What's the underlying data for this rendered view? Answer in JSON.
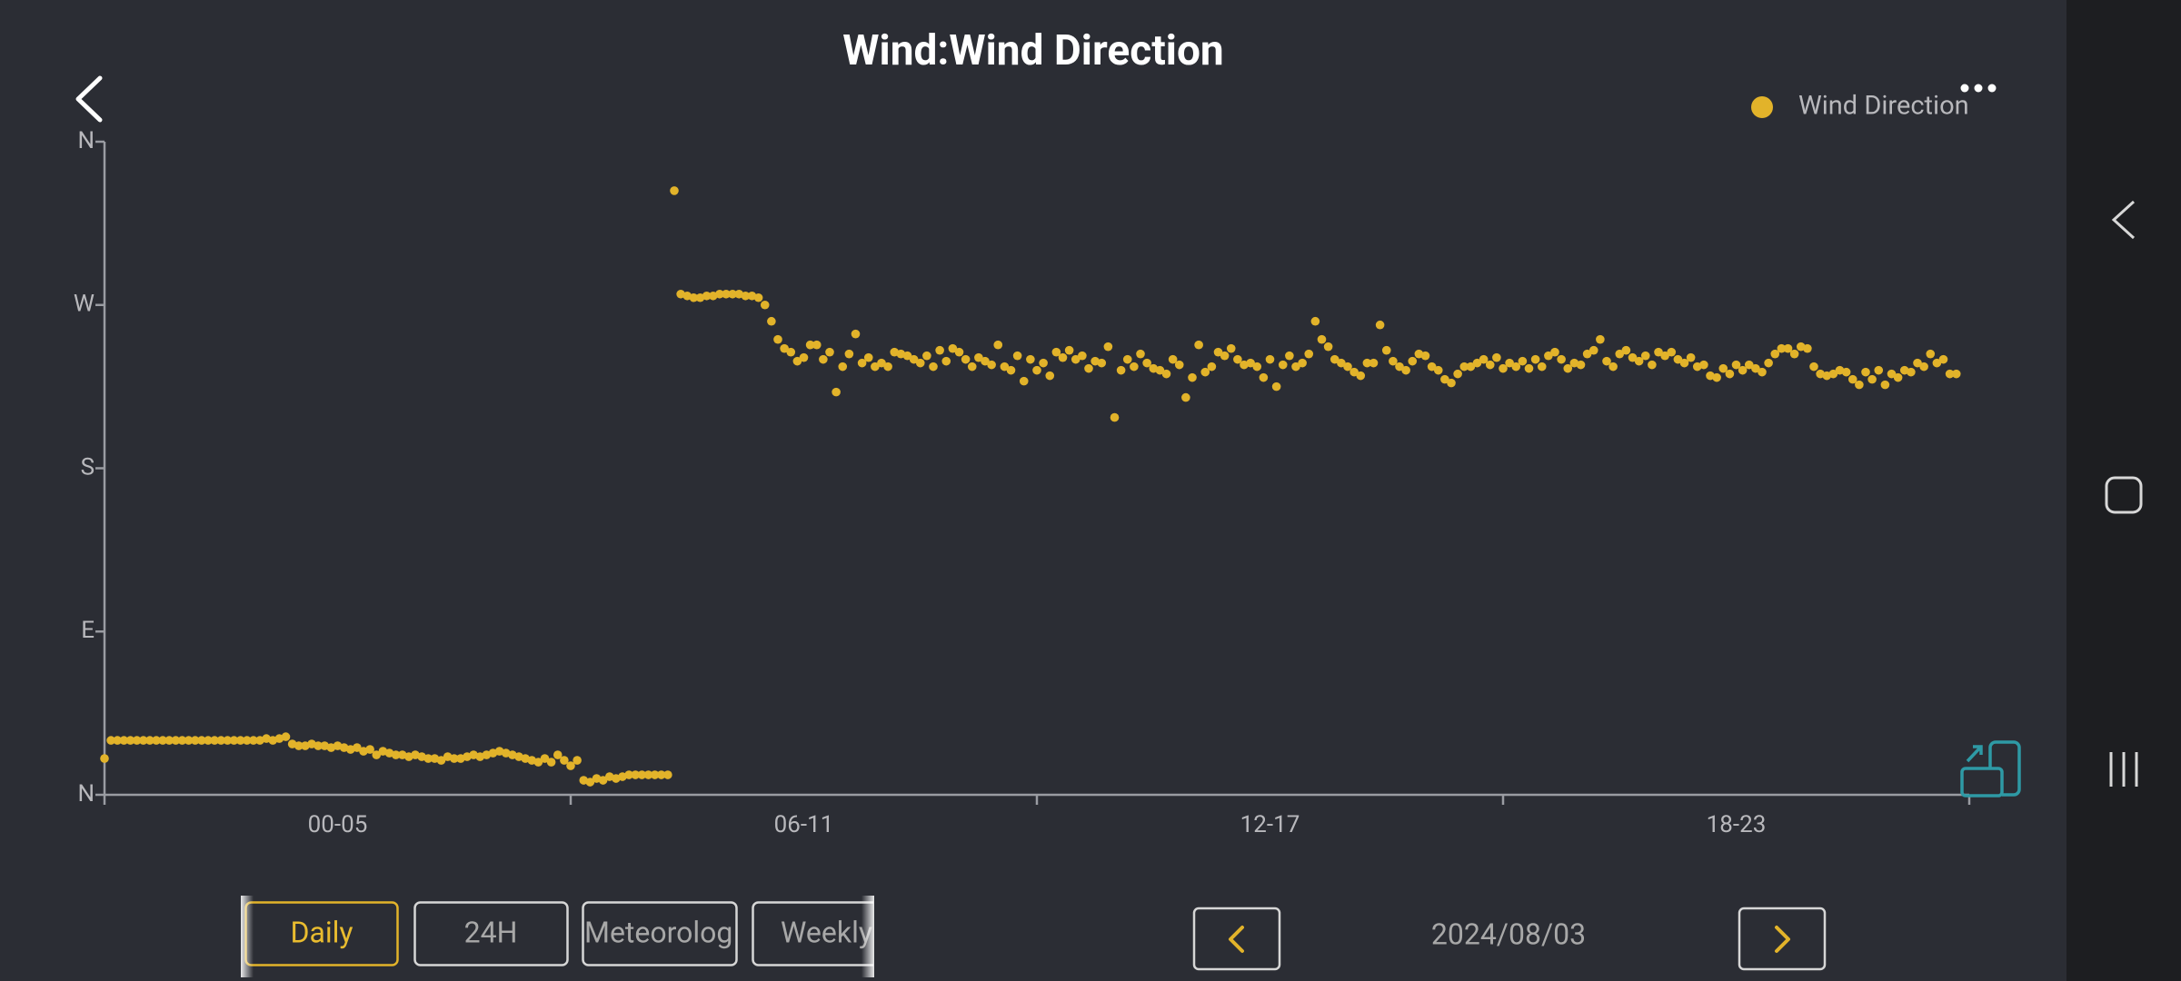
{
  "chart_data": {
    "type": "scatter",
    "title": "Wind:Wind Direction",
    "legend": "top-right",
    "x": [
      0,
      5,
      10,
      15,
      20,
      25,
      30,
      35,
      40,
      45,
      50,
      55,
      60,
      65,
      70,
      75,
      80,
      85,
      90,
      95,
      100,
      105,
      110,
      115,
      120,
      125,
      130,
      135,
      140,
      145,
      150,
      155,
      160,
      165,
      170,
      175,
      180,
      185,
      190,
      195,
      200,
      205,
      210,
      215,
      220,
      225,
      230,
      235,
      240,
      245,
      250,
      255,
      260,
      265,
      270,
      275,
      280,
      285,
      290,
      295,
      300,
      305,
      310,
      315,
      320,
      325,
      330,
      335,
      340,
      345,
      350,
      355,
      360,
      365,
      370,
      375,
      380,
      385,
      390,
      395,
      400,
      405,
      410,
      415,
      420,
      425,
      430,
      435,
      440,
      445,
      450,
      455,
      460,
      465,
      470,
      475,
      480,
      485,
      490,
      495,
      500,
      505,
      510,
      515,
      520,
      525,
      530,
      535,
      540,
      545,
      550,
      555,
      560,
      565,
      570,
      575,
      580,
      585,
      590,
      595,
      600,
      605,
      610,
      615,
      620,
      625,
      630,
      635,
      640,
      645,
      650,
      655,
      660,
      665,
      670,
      675,
      680,
      685,
      690,
      695,
      700,
      705,
      710,
      715,
      720,
      725,
      730,
      735,
      740,
      745,
      750,
      755,
      760,
      765,
      770,
      775,
      780,
      785,
      790,
      795,
      800,
      805,
      810,
      815,
      820,
      825,
      830,
      835,
      840,
      845,
      850,
      855,
      860,
      865,
      870,
      875,
      880,
      885,
      890,
      895,
      900,
      905,
      910,
      915,
      920,
      925,
      930,
      935,
      940,
      945,
      950,
      955,
      960,
      965,
      970,
      975,
      980,
      985,
      990,
      995,
      1000,
      1005,
      1010,
      1015,
      1020,
      1025,
      1030,
      1035,
      1040,
      1045,
      1050,
      1055,
      1060,
      1065,
      1070,
      1075,
      1080,
      1085,
      1090,
      1095,
      1100,
      1105,
      1110,
      1115,
      1120,
      1125,
      1130,
      1135,
      1140,
      1145,
      1150,
      1155,
      1160,
      1165,
      1170,
      1175,
      1180,
      1185,
      1190,
      1195,
      1200,
      1205,
      1210,
      1215,
      1220,
      1225,
      1230,
      1235,
      1240,
      1245,
      1250,
      1255,
      1260,
      1265,
      1270,
      1275,
      1280,
      1285,
      1290,
      1295,
      1300,
      1305,
      1310,
      1315,
      1320,
      1325,
      1330,
      1335,
      1340,
      1345,
      1350,
      1355,
      1360,
      1365,
      1370,
      1375,
      1380,
      1385,
      1390,
      1395,
      1400,
      1405,
      1410,
      1415,
      1420,
      1425,
      1430
    ],
    "series": [
      {
        "name": "Wind Direction",
        "color": "#e2b32a",
        "values": [
          20,
          30,
          30,
          30,
          30,
          30,
          30,
          30,
          30,
          30,
          30,
          30,
          30,
          30,
          30,
          30,
          30,
          30,
          30,
          30,
          30,
          30,
          30,
          30,
          30,
          31,
          30,
          31,
          32,
          28,
          27,
          27,
          28,
          27,
          27,
          26,
          27,
          26,
          25,
          26,
          24,
          25,
          22,
          24,
          23,
          22,
          22,
          21,
          22,
          21,
          20,
          20,
          19,
          21,
          20,
          20,
          21,
          22,
          21,
          22,
          23,
          24,
          23,
          22,
          21,
          20,
          19,
          18,
          20,
          18,
          22,
          19,
          16,
          19,
          8,
          7,
          9,
          8,
          10,
          9,
          10,
          11,
          11,
          11,
          11,
          11,
          11,
          11,
          333,
          276,
          275,
          274,
          274,
          275,
          275,
          276,
          276,
          276,
          276,
          275,
          275,
          274,
          270,
          261,
          251,
          246,
          244,
          239,
          241,
          248,
          248,
          240,
          244,
          222,
          236,
          243,
          254,
          238,
          241,
          236,
          238,
          236,
          244,
          243,
          242,
          240,
          238,
          242,
          236,
          245,
          239,
          246,
          244,
          240,
          236,
          241,
          239,
          237,
          248,
          236,
          234,
          242,
          228,
          240,
          234,
          238,
          231,
          244,
          241,
          245,
          240,
          242,
          235,
          239,
          238,
          247,
          208,
          234,
          240,
          236,
          243,
          238,
          235,
          234,
          232,
          240,
          237,
          219,
          230,
          248,
          233,
          236,
          244,
          242,
          246,
          240,
          237,
          238,
          236,
          230,
          240,
          225,
          237,
          242,
          236,
          238,
          243,
          261,
          251,
          247,
          240,
          238,
          236,
          233,
          231,
          238,
          238,
          259,
          245,
          239,
          236,
          234,
          239,
          243,
          242,
          236,
          234,
          229,
          227,
          232,
          236,
          236,
          238,
          240,
          237,
          241,
          235,
          238,
          236,
          239,
          235,
          240,
          236,
          242,
          244,
          240,
          235,
          238,
          237,
          243,
          245,
          251,
          239,
          236,
          243,
          245,
          241,
          239,
          242,
          237,
          244,
          242,
          244,
          240,
          238,
          241,
          236,
          237,
          231,
          230,
          235,
          232,
          237,
          234,
          237,
          235,
          233,
          238,
          243,
          246,
          246,
          243,
          247,
          246,
          236,
          232,
          231,
          232,
          234,
          233,
          229,
          226,
          233,
          229,
          234,
          226,
          232,
          230,
          234,
          233,
          238,
          236,
          243,
          238,
          240,
          232,
          232
        ]
      }
    ],
    "ylim": [
      0,
      360
    ],
    "yticks": [
      {
        "value": 0,
        "label": "N"
      },
      {
        "value": 90,
        "label": "E"
      },
      {
        "value": 180,
        "label": "S"
      },
      {
        "value": 270,
        "label": "W"
      },
      {
        "value": 360,
        "label": "N"
      }
    ],
    "xlim": [
      0,
      1440
    ],
    "xticks": [
      0,
      360,
      720,
      1080,
      1440
    ],
    "x_labels": [
      "00-05",
      "06-11",
      "12-17",
      "18-23"
    ]
  },
  "ui": {
    "buttons": [
      "Daily",
      "24H",
      "Meteorolog",
      "Weekly"
    ],
    "date": "2024/08/03"
  }
}
